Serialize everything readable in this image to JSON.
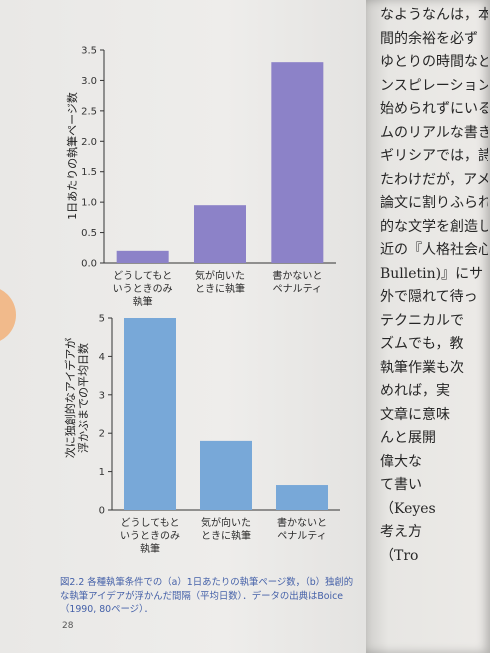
{
  "chart_data": [
    {
      "type": "bar",
      "categories": [
        "どうしてもと\nいうときのみ\n執筆",
        "気が向いた\nときに執筆",
        "書かないと\nペナルティ"
      ],
      "values": [
        0.2,
        0.95,
        3.3
      ],
      "ylabel": "1日あたりの執筆ページ数",
      "ylim": [
        0,
        3.5
      ],
      "yticks": [
        "0.0",
        "0.5",
        "1.0",
        "1.5",
        "2.0",
        "2.5",
        "3.0",
        "3.5"
      ],
      "color": "#8c82c8"
    },
    {
      "type": "bar",
      "categories": [
        "どうしてもと\nいうときのみ\n執筆",
        "気が向いた\nときに執筆",
        "書かないと\nペナルティ"
      ],
      "values": [
        5.0,
        1.8,
        0.65
      ],
      "ylabel": "次に独創的なアイデアが\n浮かぶまでの平均日数",
      "ylim": [
        0,
        5
      ],
      "yticks": [
        "0",
        "1",
        "2",
        "3",
        "4",
        "5"
      ],
      "color": "#78a8d8"
    }
  ],
  "caption": "図2.2  各種執筆条件での（a）1日あたりの執筆ページ数，（b）独創的な執筆アイデアが浮かんだ間隔（平均日数）．データの出典はBoice（1990, 80ページ）．",
  "page_number": "28",
  "right_page_lines": [
    "なようなんは，本書",
    "間的余裕を必ず",
    "ゆとりの時間など",
    "ンスピレーション",
    "始められずにいる人は",
    "ムのリアルな書き手",
    "ギリシアでは，詩や",
    "たわけだが，アメリ",
    "論文に割りふられ",
    "的な文学を創造し",
    "近の『人格社会心",
    "Bulletin)』にサ",
    "外で隠れて待っ",
    "テクニカルで",
    "ズムでも，教",
    "執筆作業も次",
    "めれば，実",
    "文章に意味",
    "んと展開",
    "偉大な",
    "て書い",
    "（Keyes",
    "考え方",
    "（Tro"
  ]
}
